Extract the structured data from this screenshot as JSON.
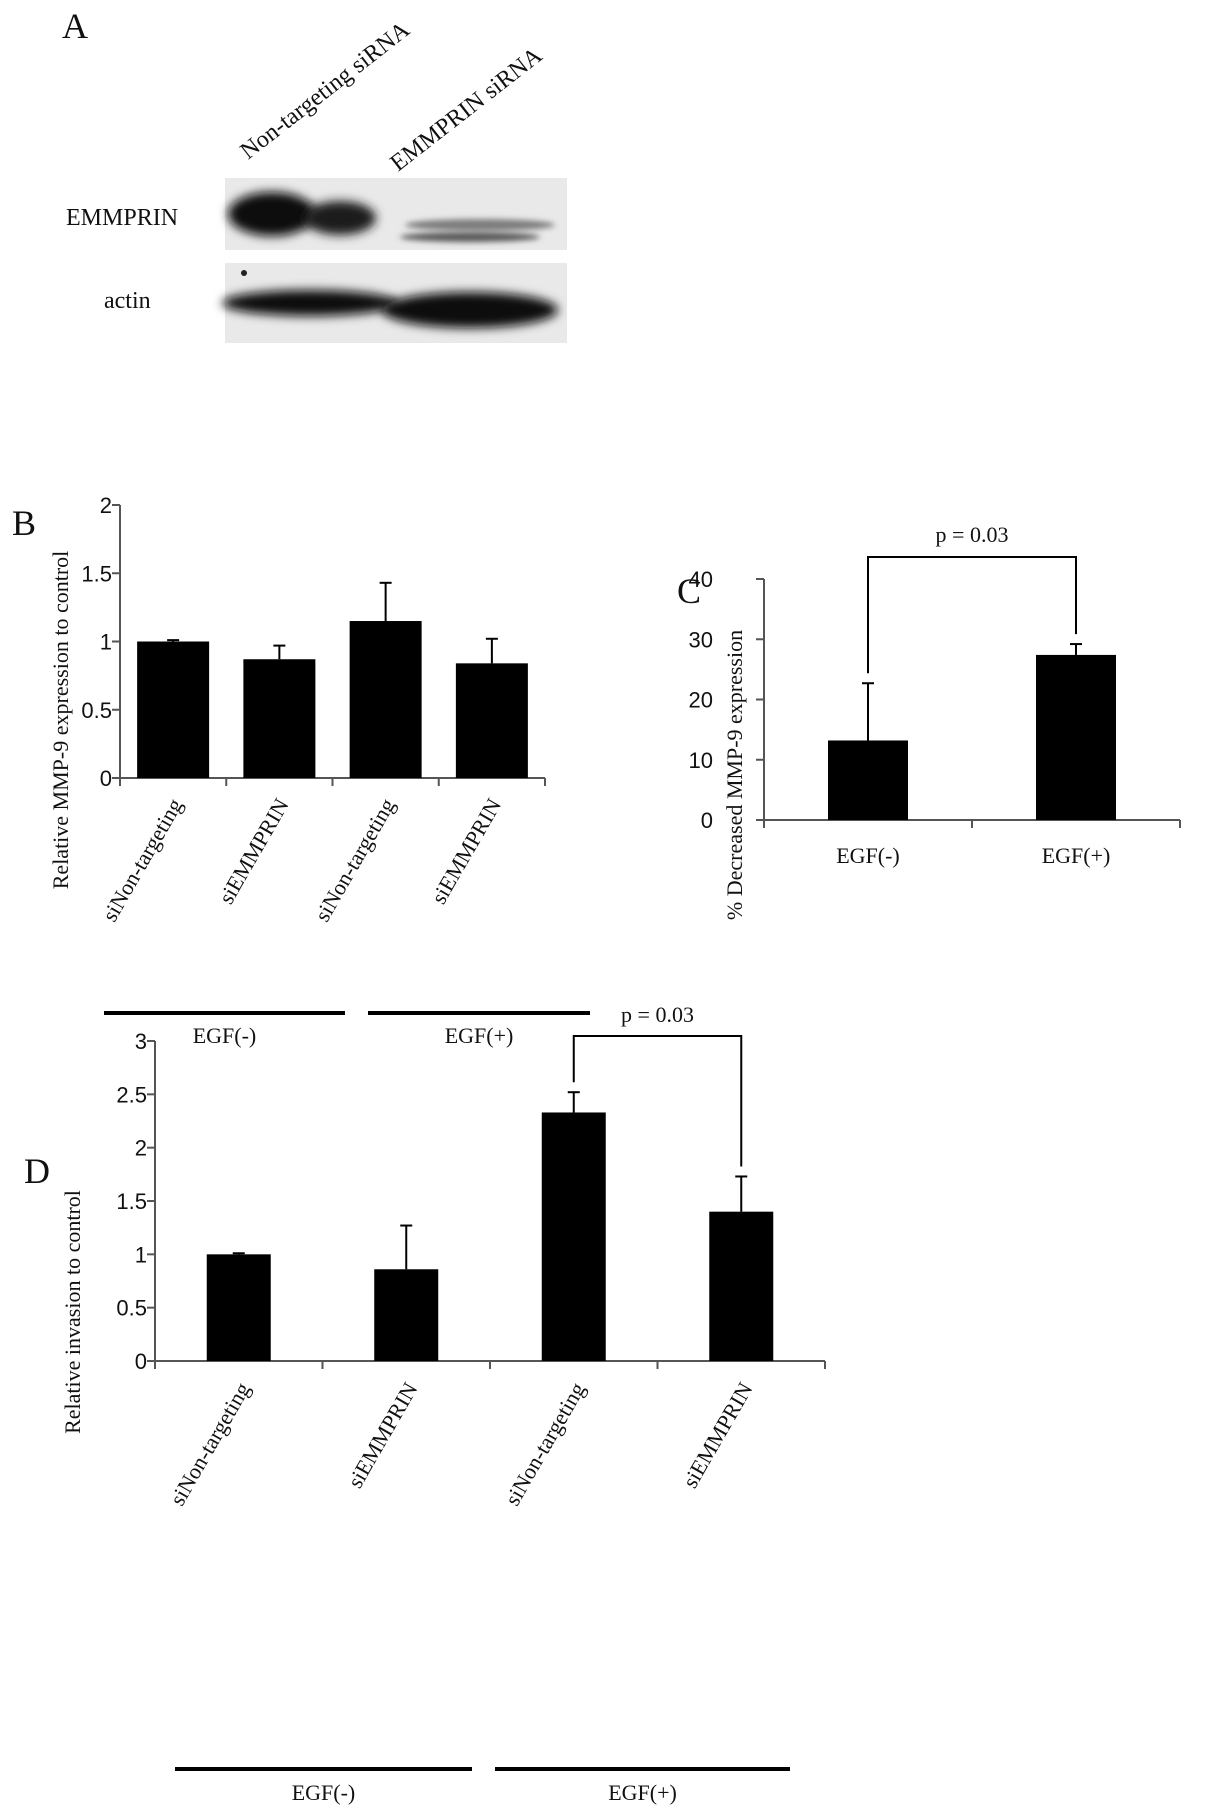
{
  "panels": {
    "a": {
      "letter": "A",
      "lane_labels": [
        "Non-targeting siRNA",
        "EMMPRIN siRNA"
      ],
      "row_labels": [
        "EMMPRIN",
        "actin"
      ]
    },
    "b": {
      "letter": "B"
    },
    "c": {
      "letter": "C"
    },
    "d": {
      "letter": "D"
    }
  },
  "chart_data": [
    {
      "id": "b",
      "type": "bar",
      "categories": [
        "siNon-targeting",
        "siEMMPRIN",
        "siNon-targeting",
        "siEMMPRIN"
      ],
      "values": [
        1.0,
        0.87,
        1.15,
        0.84
      ],
      "errors": [
        0.01,
        0.1,
        0.28,
        0.18
      ],
      "ylabel": "Relative  MMP-9 expression to control",
      "ylim": [
        0,
        2
      ],
      "yticks": [
        0,
        0.5,
        1,
        1.5,
        2
      ],
      "ytick_labels": [
        "0",
        "0.5",
        "1",
        "1.5",
        "2"
      ],
      "groups": [
        {
          "label": "EGF(-)",
          "members": [
            0,
            1
          ]
        },
        {
          "label": "EGF(+)",
          "members": [
            2,
            3
          ]
        }
      ],
      "bar_color": "#000000",
      "grid": false
    },
    {
      "id": "c",
      "type": "bar",
      "categories": [
        "EGF(-)",
        "EGF(+)"
      ],
      "values": [
        13.2,
        27.4
      ],
      "errors": [
        9.5,
        1.8
      ],
      "ylabel": "% Decreased MMP-9 expression",
      "ylim": [
        0,
        40
      ],
      "yticks": [
        0,
        10,
        20,
        30,
        40
      ],
      "ytick_labels": [
        "0",
        "10",
        "20",
        "30",
        "40"
      ],
      "annotations": [
        {
          "text": "p = 0.03",
          "between": [
            0,
            1
          ]
        }
      ],
      "bar_color": "#000000",
      "grid": false
    },
    {
      "id": "d",
      "type": "bar",
      "categories": [
        "siNon-targeting",
        "siEMMPRIN",
        "siNon-targeting",
        "siEMMPRIN"
      ],
      "values": [
        1.0,
        0.86,
        2.33,
        1.4
      ],
      "errors": [
        0.01,
        0.41,
        0.19,
        0.33
      ],
      "ylabel": "Relative  invasion to control",
      "ylim": [
        0,
        3
      ],
      "yticks": [
        0,
        0.5,
        1,
        1.5,
        2,
        2.5,
        3
      ],
      "ytick_labels": [
        "0",
        "0.5",
        "1",
        "1.5",
        "2",
        "2.5",
        "3"
      ],
      "groups": [
        {
          "label": "EGF(-)",
          "members": [
            0,
            1
          ]
        },
        {
          "label": "EGF(+)",
          "members": [
            2,
            3
          ]
        }
      ],
      "annotations": [
        {
          "text": "p = 0.03",
          "between": [
            2,
            3
          ]
        }
      ],
      "bar_color": "#000000",
      "grid": false
    }
  ],
  "colors": {
    "bar": "#000000",
    "axis": "#555555",
    "text": "#111111"
  }
}
